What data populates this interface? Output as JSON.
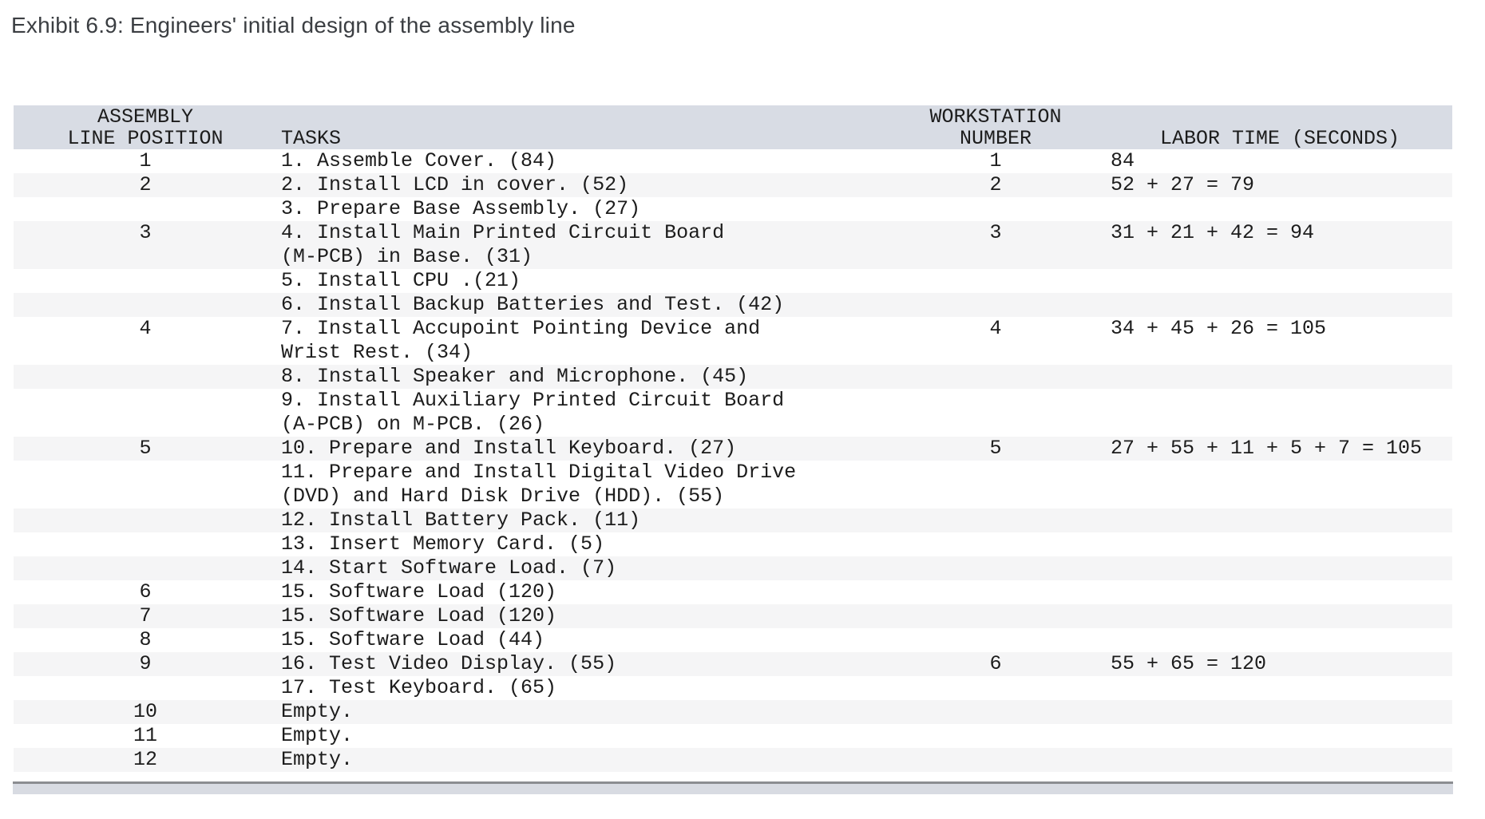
{
  "title": "Exhibit 6.9: Engineers' initial design of the assembly line",
  "colors": {
    "header_band": "#d8dce4",
    "row_stripe": "#f5f5f6",
    "scrollbar_track": "#d8dbe2",
    "scrollbar_border": "#8b8d91",
    "text": "#1c1c1c",
    "title_text": "#3b3e42"
  },
  "table": {
    "headers": {
      "position_line1": "ASSEMBLY",
      "position_line2": "LINE POSITION",
      "tasks": "TASKS",
      "workstation_line1": "WORKSTATION",
      "workstation_line2": "NUMBER",
      "labor": "LABOR TIME (SECONDS)"
    },
    "rows": [
      {
        "position": "1",
        "tasks": [
          "1. Assemble Cover. (84)"
        ],
        "workstation": "1",
        "labor": "84"
      },
      {
        "position": "2",
        "tasks": [
          "2. Install LCD in cover. (52)"
        ],
        "workstation": "2",
        "labor": "52 + 27 = 79"
      },
      {
        "position": "",
        "tasks": [
          "3. Prepare Base Assembly. (27)"
        ],
        "workstation": "",
        "labor": ""
      },
      {
        "position": "3",
        "tasks": [
          "4. Install Main Printed Circuit Board",
          "(M-PCB) in Base. (31)"
        ],
        "workstation": "3",
        "labor": "31 + 21 + 42 = 94"
      },
      {
        "position": "",
        "tasks": [
          "5. Install CPU .(21)"
        ],
        "workstation": "",
        "labor": ""
      },
      {
        "position": "",
        "tasks": [
          "6. Install Backup Batteries and Test. (42)"
        ],
        "workstation": "",
        "labor": ""
      },
      {
        "position": "4",
        "tasks": [
          "7. Install Accupoint Pointing Device and",
          "Wrist Rest. (34)"
        ],
        "workstation": "4",
        "labor": "34 + 45 + 26 = 105"
      },
      {
        "position": "",
        "tasks": [
          "8. Install Speaker and Microphone. (45)"
        ],
        "workstation": "",
        "labor": ""
      },
      {
        "position": "",
        "tasks": [
          "9. Install Auxiliary Printed Circuit Board",
          "(A-PCB) on M-PCB. (26)"
        ],
        "workstation": "",
        "labor": ""
      },
      {
        "position": "5",
        "tasks": [
          "10. Prepare and Install Keyboard. (27)"
        ],
        "workstation": "5",
        "labor": "27 + 55 + 11 + 5 + 7 = 105"
      },
      {
        "position": "",
        "tasks": [
          "11. Prepare and Install Digital Video Drive",
          "(DVD) and Hard Disk Drive (HDD). (55)"
        ],
        "workstation": "",
        "labor": ""
      },
      {
        "position": "",
        "tasks": [
          "12. Install Battery Pack. (11)"
        ],
        "workstation": "",
        "labor": ""
      },
      {
        "position": "",
        "tasks": [
          "13. Insert Memory Card. (5)"
        ],
        "workstation": "",
        "labor": ""
      },
      {
        "position": "",
        "tasks": [
          "14. Start Software Load. (7)"
        ],
        "workstation": "",
        "labor": ""
      },
      {
        "position": "6",
        "tasks": [
          "15. Software Load (120)"
        ],
        "workstation": "",
        "labor": ""
      },
      {
        "position": "7",
        "tasks": [
          "15. Software Load (120)"
        ],
        "workstation": "",
        "labor": ""
      },
      {
        "position": "8",
        "tasks": [
          "15. Software Load (44)"
        ],
        "workstation": "",
        "labor": ""
      },
      {
        "position": "9",
        "tasks": [
          "16. Test Video Display. (55)"
        ],
        "workstation": "6",
        "labor": "55 + 65 = 120"
      },
      {
        "position": "",
        "tasks": [
          "17. Test Keyboard. (65)"
        ],
        "workstation": "",
        "labor": ""
      },
      {
        "position": "10",
        "tasks": [
          "Empty."
        ],
        "workstation": "",
        "labor": ""
      },
      {
        "position": "11",
        "tasks": [
          "Empty."
        ],
        "workstation": "",
        "labor": ""
      },
      {
        "position": "12",
        "tasks": [
          "Empty."
        ],
        "workstation": "",
        "labor": ""
      }
    ]
  }
}
